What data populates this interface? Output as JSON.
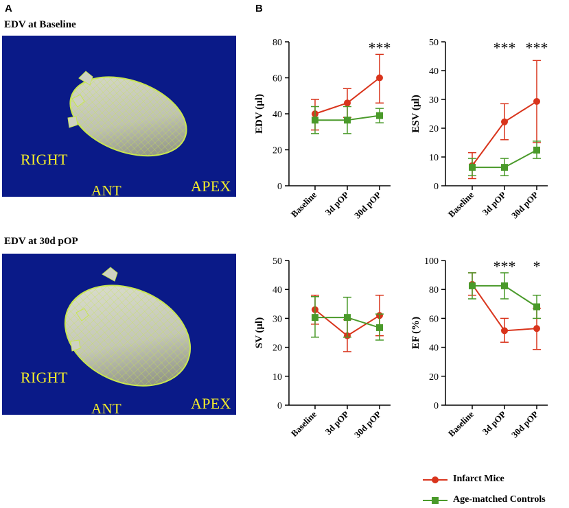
{
  "panels": {
    "a_label": "A",
    "b_label": "B"
  },
  "hearts": [
    {
      "title": "EDV at Baseline",
      "labels": {
        "right": "RIGHT",
        "ant": "ANT",
        "apex": "APEX"
      }
    },
    {
      "title": "EDV at 30d pOP",
      "labels": {
        "right": "RIGHT",
        "ant": "ANT",
        "apex": "APEX"
      }
    }
  ],
  "colors": {
    "infarct": "#d9341c",
    "control": "#4a9a2a",
    "mesh": "#c8e650",
    "background_blue": "#0a1a88",
    "label_yellow": "#f4ee2a"
  },
  "legend": {
    "infarct": "Infarct Mice",
    "control": "Age-matched Controls"
  },
  "chart_data": [
    {
      "type": "line",
      "ylabel": "EDV (µl)",
      "categories": [
        "Baseline",
        "3d pOP",
        "30d pOP"
      ],
      "ylim": [
        0,
        80
      ],
      "yticks": [
        0,
        20,
        40,
        60,
        80
      ],
      "series": [
        {
          "name": "Infarct Mice",
          "values": [
            40,
            46,
            60
          ],
          "err_low": [
            31,
            38,
            46
          ],
          "err_high": [
            48,
            54,
            73
          ]
        },
        {
          "name": "Age-matched Controls",
          "values": [
            36.5,
            36.5,
            39
          ],
          "err_low": [
            29,
            29,
            35
          ],
          "err_high": [
            44,
            44,
            43
          ]
        }
      ],
      "annotations": [
        "",
        "",
        "***"
      ]
    },
    {
      "type": "line",
      "ylabel": "ESV (µl)",
      "categories": [
        "Baseline",
        "3d pOP",
        "30d pOP"
      ],
      "ylim": [
        0,
        50
      ],
      "yticks": [
        0,
        10,
        20,
        30,
        40,
        50
      ],
      "series": [
        {
          "name": "Infarct Mice",
          "values": [
            7,
            22.2,
            29.3
          ],
          "err_low": [
            2.5,
            16,
            15
          ],
          "err_high": [
            11.5,
            28.5,
            43.5
          ]
        },
        {
          "name": "Age-matched Controls",
          "values": [
            6.4,
            6.4,
            12.4
          ],
          "err_low": [
            3.5,
            3.5,
            9.5
          ],
          "err_high": [
            9.5,
            9.5,
            15.5
          ]
        }
      ],
      "annotations": [
        "",
        "***",
        "***"
      ]
    },
    {
      "type": "line",
      "ylabel": "SV (µl)",
      "categories": [
        "Baseline",
        "3d pOP",
        "30d pOP"
      ],
      "ylim": [
        0,
        50
      ],
      "yticks": [
        0,
        10,
        20,
        30,
        40,
        50
      ],
      "series": [
        {
          "name": "Infarct Mice",
          "values": [
            33,
            24,
            31
          ],
          "err_low": [
            28,
            18.5,
            24
          ],
          "err_high": [
            38,
            29.5,
            38
          ]
        },
        {
          "name": "Age-matched Controls",
          "values": [
            30.3,
            30.3,
            26.8
          ],
          "err_low": [
            23.5,
            23.5,
            22.5
          ],
          "err_high": [
            37.5,
            37.3,
            31.5
          ]
        }
      ],
      "annotations": [
        "",
        "",
        ""
      ]
    },
    {
      "type": "line",
      "ylabel": "EF (%)",
      "categories": [
        "Baseline",
        "3d pOP",
        "30d pOP"
      ],
      "ylim": [
        0,
        100
      ],
      "yticks": [
        0,
        20,
        40,
        60,
        80,
        100
      ],
      "series": [
        {
          "name": "Infarct Mice",
          "values": [
            83.5,
            51.5,
            53
          ],
          "err_low": [
            76,
            43.5,
            38.5
          ],
          "err_high": [
            91.5,
            60,
            67
          ]
        },
        {
          "name": "Age-matched Controls",
          "values": [
            82.5,
            82.5,
            68
          ],
          "err_low": [
            73.5,
            73.5,
            60
          ],
          "err_high": [
            91.5,
            91.5,
            76
          ]
        }
      ],
      "annotations": [
        "",
        "***",
        "*"
      ]
    }
  ]
}
